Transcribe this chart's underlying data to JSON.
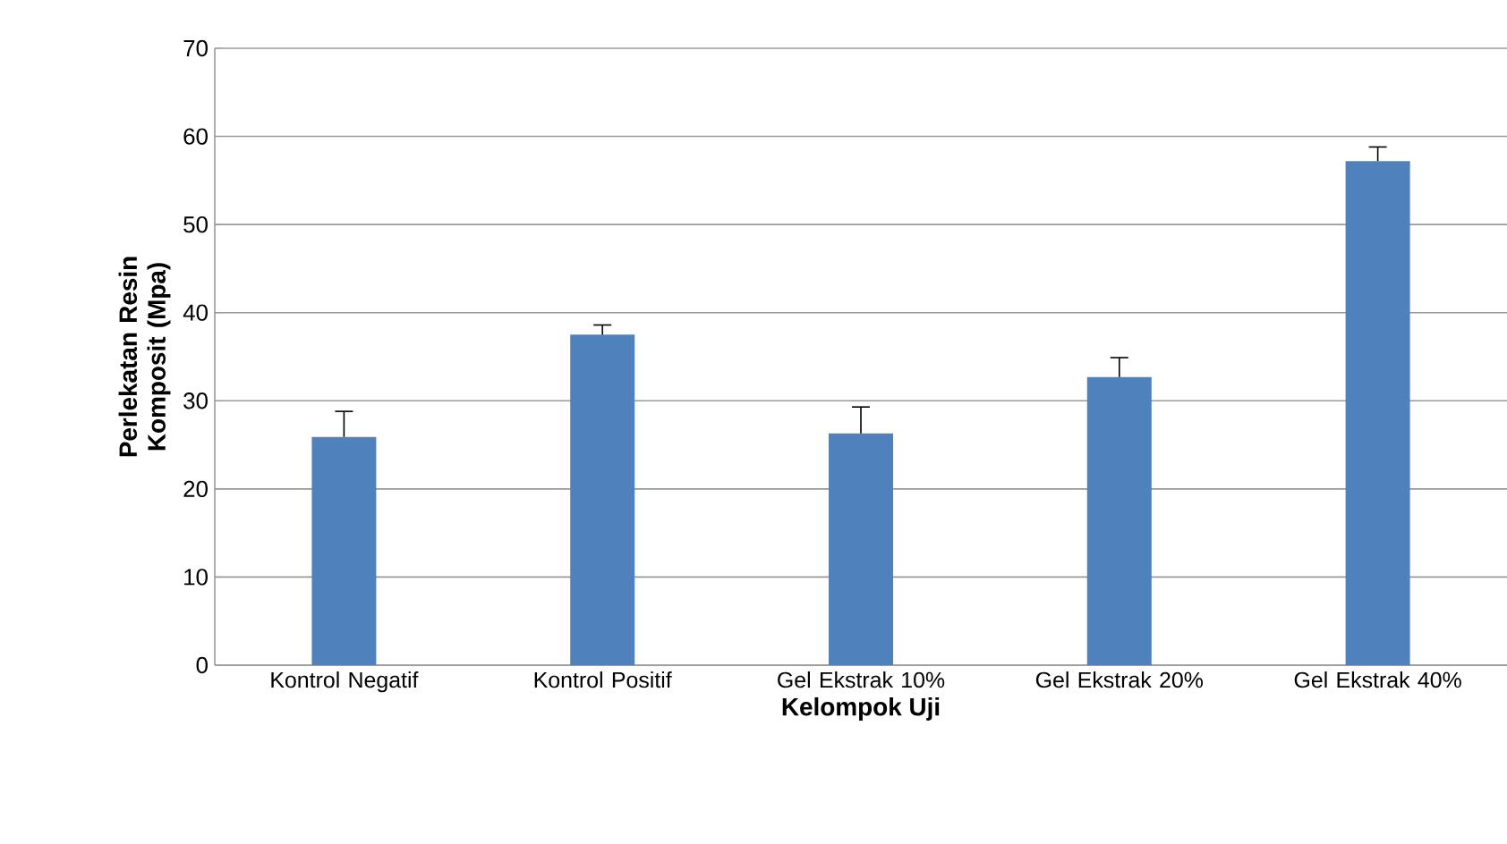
{
  "chart_data": {
    "type": "bar",
    "xlabel": "Kelompok Uji",
    "ylabel": "Perlekatan Resin Komposit (Mpa)",
    "categories": [
      "Kontrol Negatif",
      "Kontrol Positif",
      "Gel Ekstrak 10%",
      "Gel Ekstrak 20%",
      "Gel Ekstrak 40%"
    ],
    "values": [
      25.9,
      37.5,
      26.3,
      32.7,
      57.2
    ],
    "errors": [
      [
        25.9,
        28.8
      ],
      [
        37.5,
        38.6
      ],
      [
        26.3,
        29.3
      ],
      [
        32.7,
        34.9
      ],
      [
        57.2,
        58.8
      ]
    ],
    "color": "#4f81bd",
    "ylim": [
      0,
      70
    ],
    "yticks": [
      0,
      10,
      20,
      30,
      40,
      50,
      60,
      70
    ],
    "grid": "y"
  }
}
